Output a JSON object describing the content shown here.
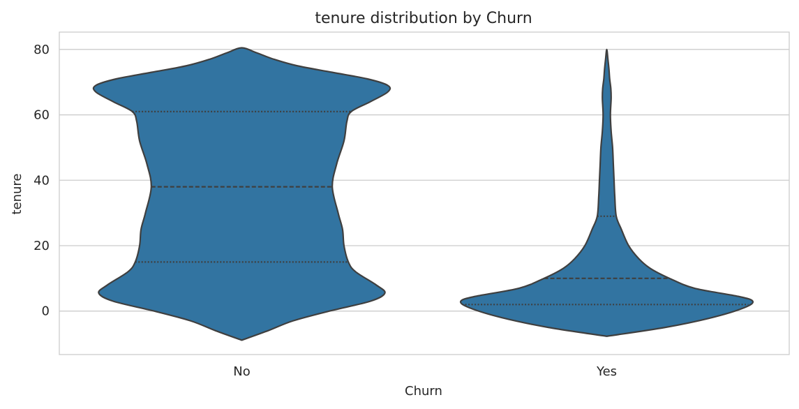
{
  "chart_data": {
    "type": "violin",
    "title": "tenure distribution by Churn",
    "xlabel": "Churn",
    "ylabel": "tenure",
    "ylim": [
      -13.3,
      85.3
    ],
    "yticks": [
      0,
      20,
      40,
      60,
      80
    ],
    "ytick_labels": [
      "0",
      "20",
      "40",
      "60",
      "80"
    ],
    "grid": true,
    "categories": [
      "No",
      "Yes"
    ],
    "violins": [
      {
        "category": "No",
        "quartiles": [
          15,
          38,
          61
        ],
        "profile": [
          [
            -8.9,
            0.0
          ],
          [
            -6,
            0.18
          ],
          [
            -3,
            0.35
          ],
          [
            0,
            0.6
          ],
          [
            3,
            0.88
          ],
          [
            5.5,
            0.98
          ],
          [
            8,
            0.92
          ],
          [
            12,
            0.78
          ],
          [
            15,
            0.73
          ],
          [
            20,
            0.7
          ],
          [
            25,
            0.69
          ],
          [
            30,
            0.66
          ],
          [
            38,
            0.62
          ],
          [
            45,
            0.65
          ],
          [
            52,
            0.7
          ],
          [
            58,
            0.72
          ],
          [
            61,
            0.75
          ],
          [
            64,
            0.88
          ],
          [
            67,
            1.0
          ],
          [
            69,
            1.0
          ],
          [
            71,
            0.86
          ],
          [
            73,
            0.62
          ],
          [
            75,
            0.38
          ],
          [
            77,
            0.22
          ],
          [
            79,
            0.1
          ],
          [
            80.5,
            0.0
          ]
        ]
      },
      {
        "category": "Yes",
        "quartiles": [
          2,
          10,
          29
        ],
        "profile": [
          [
            -7.7,
            0.0
          ],
          [
            -5,
            0.4
          ],
          [
            -2,
            0.72
          ],
          [
            1,
            0.94
          ],
          [
            3,
            1.0
          ],
          [
            4.5,
            0.9
          ],
          [
            7,
            0.6
          ],
          [
            10,
            0.43
          ],
          [
            13,
            0.3
          ],
          [
            16,
            0.22
          ],
          [
            20,
            0.15
          ],
          [
            25,
            0.1
          ],
          [
            29,
            0.065
          ],
          [
            35,
            0.055
          ],
          [
            40,
            0.05
          ],
          [
            45,
            0.045
          ],
          [
            50,
            0.04
          ],
          [
            55,
            0.03
          ],
          [
            60,
            0.025
          ],
          [
            65,
            0.03
          ],
          [
            68,
            0.028
          ],
          [
            71,
            0.02
          ],
          [
            74,
            0.015
          ],
          [
            77,
            0.008
          ],
          [
            80,
            0.0
          ]
        ]
      }
    ],
    "colors": {
      "fill": "#3274a1",
      "edge": "#3f3f3f",
      "grid": "#cccccc",
      "spine": "#cccccc"
    }
  }
}
